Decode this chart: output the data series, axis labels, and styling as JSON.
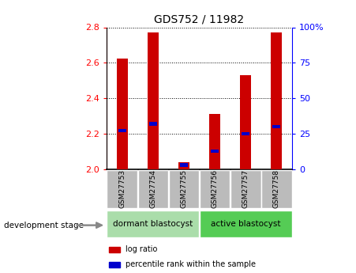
{
  "title": "GDS752 / 11982",
  "samples": [
    "GSM27753",
    "GSM27754",
    "GSM27755",
    "GSM27756",
    "GSM27757",
    "GSM27758"
  ],
  "log_ratios": [
    2.625,
    2.77,
    2.04,
    2.31,
    2.53,
    2.77
  ],
  "percentile_ranks": [
    27,
    32,
    3,
    13,
    25,
    30
  ],
  "ylim_left": [
    2.0,
    2.8
  ],
  "ylim_right": [
    0,
    100
  ],
  "yticks_left": [
    2.0,
    2.2,
    2.4,
    2.6,
    2.8
  ],
  "yticks_right": [
    0,
    25,
    50,
    75,
    100
  ],
  "bar_color": "#cc0000",
  "percentile_color": "#0000cc",
  "group1_label": "dormant blastocyst",
  "group2_label": "active blastocyst",
  "group1_indices": [
    0,
    1,
    2
  ],
  "group2_indices": [
    3,
    4,
    5
  ],
  "group1_color": "#aaddaa",
  "group2_color": "#55cc55",
  "dev_stage_label": "development stage",
  "legend_logratio": "log ratio",
  "legend_percentile": "percentile rank within the sample",
  "background_color": "#ffffff",
  "plot_bg_color": "#ffffff",
  "grid_color": "#000000",
  "bar_width": 0.35,
  "base_value": 2.0,
  "percentile_bar_width": 0.25,
  "label_box_color": "#bbbbbb"
}
